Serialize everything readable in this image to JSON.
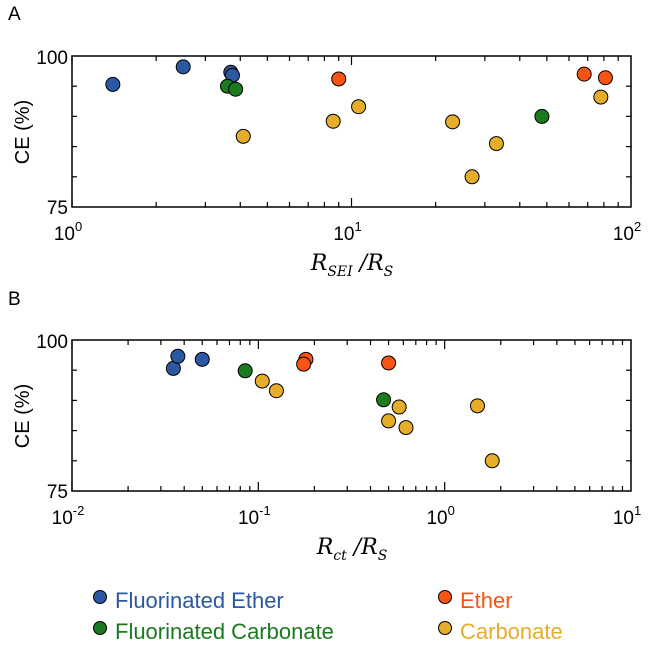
{
  "colors": {
    "fluorinated_ether": "#2b58a0",
    "fluorinated_carbonate": "#1a7a1f",
    "ether": "#fa5414",
    "carbonate": "#e6ad2b"
  },
  "legend": [
    {
      "key": "fluorinated_ether",
      "label": "Fluorinated Ether"
    },
    {
      "key": "ether",
      "label": "Ether"
    },
    {
      "key": "fluorinated_carbonate",
      "label": "Fluorinated Carbonate"
    },
    {
      "key": "carbonate",
      "label": "Carbonate"
    }
  ],
  "chart_data": [
    {
      "type": "scatter",
      "panel": "A",
      "ylabel": "CE (%)",
      "xlabel": {
        "main": "R",
        "sub1": "SEI",
        "sep": " /R",
        "sub2": "S"
      },
      "x_scale": "log",
      "xlim": [
        1,
        100
      ],
      "ylim": [
        75,
        100
      ],
      "x_ticks": [
        {
          "base": "10",
          "exp": "0"
        },
        {
          "base": "10",
          "exp": "1"
        },
        {
          "base": "10",
          "exp": "2"
        }
      ],
      "y_ticks": [
        "75",
        "100"
      ],
      "series": [
        {
          "name": "Fluorinated Ether",
          "key": "fluorinated_ether",
          "points": [
            [
              1.4,
              95.3
            ],
            [
              2.5,
              98.2
            ],
            [
              3.7,
              97.3
            ],
            [
              3.75,
              96.8
            ]
          ]
        },
        {
          "name": "Fluorinated Carbonate",
          "key": "fluorinated_carbonate",
          "points": [
            [
              3.6,
              95.0
            ],
            [
              3.85,
              94.5
            ],
            [
              48,
              90.0
            ]
          ]
        },
        {
          "name": "Ether",
          "key": "ether",
          "points": [
            [
              9,
              96.2
            ],
            [
              68,
              97.0
            ],
            [
              81,
              96.4
            ]
          ]
        },
        {
          "name": "Carbonate",
          "key": "carbonate",
          "points": [
            [
              4.1,
              86.7
            ],
            [
              8.6,
              89.2
            ],
            [
              10.6,
              91.6
            ],
            [
              23,
              89.1
            ],
            [
              27,
              80.0
            ],
            [
              33,
              85.5
            ],
            [
              78,
              93.2
            ]
          ]
        }
      ]
    },
    {
      "type": "scatter",
      "panel": "B",
      "ylabel": "CE (%)",
      "xlabel": {
        "main": "R",
        "sub1": "ct",
        "sep": " /R",
        "sub2": "S"
      },
      "x_scale": "log",
      "xlim": [
        0.01,
        10
      ],
      "ylim": [
        75,
        100
      ],
      "x_ticks": [
        {
          "base": "10",
          "exp": "-2"
        },
        {
          "base": "10",
          "exp": "-1"
        },
        {
          "base": "10",
          "exp": "0"
        },
        {
          "base": "10",
          "exp": "1"
        }
      ],
      "y_ticks": [
        "75",
        "100"
      ],
      "series": [
        {
          "name": "Fluorinated Ether",
          "key": "fluorinated_ether",
          "points": [
            [
              0.035,
              95.3
            ],
            [
              0.037,
              97.3
            ],
            [
              0.05,
              96.8
            ]
          ]
        },
        {
          "name": "Fluorinated Carbonate",
          "key": "fluorinated_carbonate",
          "points": [
            [
              0.085,
              94.9
            ],
            [
              0.47,
              90.1
            ]
          ]
        },
        {
          "name": "Ether",
          "key": "ether",
          "points": [
            [
              0.18,
              96.8
            ],
            [
              0.175,
              96.0
            ],
            [
              0.5,
              96.2
            ]
          ]
        },
        {
          "name": "Carbonate",
          "key": "carbonate",
          "points": [
            [
              0.105,
              93.2
            ],
            [
              0.125,
              91.6
            ],
            [
              0.5,
              86.6
            ],
            [
              0.57,
              88.9
            ],
            [
              0.62,
              85.5
            ],
            [
              1.5,
              89.1
            ],
            [
              1.8,
              80.0
            ]
          ]
        }
      ]
    }
  ]
}
